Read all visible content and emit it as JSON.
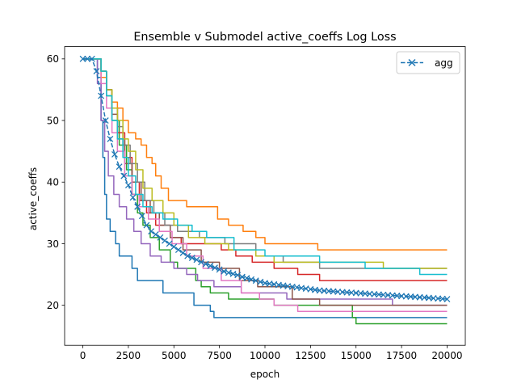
{
  "chart_data": {
    "type": "line",
    "title": "Ensemble v Submodel active_coeffs Log Loss",
    "xlabel": "epoch",
    "ylabel": "active_coeffs",
    "xlim": [
      -1000,
      21000
    ],
    "ylim": [
      13.5,
      62.0
    ],
    "xticks": [
      0,
      2500,
      5000,
      7500,
      10000,
      12500,
      15000,
      17500,
      20000
    ],
    "xtick_labels": [
      "0",
      "2500",
      "5000",
      "7500",
      "10000",
      "12500",
      "15000",
      "17500",
      "20000"
    ],
    "yticks": [
      20,
      30,
      40,
      50,
      60
    ],
    "ytick_labels": [
      "20",
      "30",
      "40",
      "50",
      "60"
    ],
    "grid": false,
    "legend": {
      "position": "top-right",
      "entries": [
        "agg"
      ]
    },
    "colors": [
      "#1f77b4",
      "#ff7f0e",
      "#2ca02c",
      "#d62728",
      "#9467bd",
      "#8c564b",
      "#e377c2",
      "#7f7f7f",
      "#bcbd22",
      "#17becf"
    ],
    "series": [
      {
        "color": "#1f77b4",
        "points": [
          [
            0,
            60
          ],
          [
            600,
            60
          ],
          [
            800,
            57
          ],
          [
            1000,
            50
          ],
          [
            1100,
            44
          ],
          [
            1200,
            38
          ],
          [
            1300,
            34
          ],
          [
            1500,
            32
          ],
          [
            1800,
            30
          ],
          [
            2000,
            28
          ],
          [
            2600,
            28
          ],
          [
            2700,
            26
          ],
          [
            3000,
            24
          ],
          [
            4200,
            24
          ],
          [
            4400,
            22
          ],
          [
            6000,
            22
          ],
          [
            6100,
            20
          ],
          [
            6800,
            20
          ],
          [
            7000,
            19
          ],
          [
            7200,
            18
          ],
          [
            20000,
            18
          ]
        ]
      },
      {
        "color": "#ff7f0e",
        "points": [
          [
            0,
            60
          ],
          [
            800,
            60
          ],
          [
            1000,
            57
          ],
          [
            1300,
            55
          ],
          [
            1600,
            53
          ],
          [
            1900,
            52
          ],
          [
            2200,
            50
          ],
          [
            2500,
            48
          ],
          [
            2900,
            47
          ],
          [
            3200,
            46
          ],
          [
            3500,
            44
          ],
          [
            3800,
            43
          ],
          [
            4000,
            41
          ],
          [
            4300,
            39
          ],
          [
            4700,
            37
          ],
          [
            5200,
            37
          ],
          [
            5700,
            36
          ],
          [
            7000,
            36
          ],
          [
            7400,
            34
          ],
          [
            8000,
            33
          ],
          [
            8800,
            32
          ],
          [
            9500,
            31
          ],
          [
            10000,
            30
          ],
          [
            12500,
            30
          ],
          [
            12900,
            29
          ],
          [
            20000,
            29
          ]
        ]
      },
      {
        "color": "#2ca02c",
        "points": [
          [
            0,
            60
          ],
          [
            800,
            60
          ],
          [
            1000,
            58
          ],
          [
            1300,
            54
          ],
          [
            1600,
            50
          ],
          [
            2000,
            46
          ],
          [
            2400,
            42
          ],
          [
            2700,
            38
          ],
          [
            3000,
            35
          ],
          [
            3300,
            33
          ],
          [
            3700,
            31
          ],
          [
            4200,
            29
          ],
          [
            4800,
            27
          ],
          [
            5200,
            26
          ],
          [
            6200,
            24
          ],
          [
            6500,
            23
          ],
          [
            7000,
            22
          ],
          [
            8000,
            21
          ],
          [
            10000,
            21
          ],
          [
            10500,
            20
          ],
          [
            14500,
            20
          ],
          [
            14800,
            18
          ],
          [
            15000,
            17
          ],
          [
            20000,
            17
          ]
        ]
      },
      {
        "color": "#d62728",
        "points": [
          [
            0,
            60
          ],
          [
            800,
            60
          ],
          [
            1000,
            58
          ],
          [
            1300,
            55
          ],
          [
            1600,
            52
          ],
          [
            1900,
            48
          ],
          [
            2300,
            44
          ],
          [
            2700,
            40
          ],
          [
            3100,
            37
          ],
          [
            3500,
            35
          ],
          [
            4000,
            33
          ],
          [
            4800,
            31
          ],
          [
            5400,
            30
          ],
          [
            7000,
            30
          ],
          [
            7600,
            29
          ],
          [
            8400,
            28
          ],
          [
            9300,
            27
          ],
          [
            10500,
            26
          ],
          [
            11800,
            25
          ],
          [
            12600,
            25
          ],
          [
            13000,
            24
          ],
          [
            20000,
            24
          ]
        ]
      },
      {
        "color": "#9467bd",
        "points": [
          [
            0,
            60
          ],
          [
            600,
            60
          ],
          [
            800,
            56
          ],
          [
            1000,
            50
          ],
          [
            1200,
            45
          ],
          [
            1400,
            41
          ],
          [
            1700,
            38
          ],
          [
            2000,
            36
          ],
          [
            2400,
            34
          ],
          [
            2800,
            32
          ],
          [
            3200,
            30
          ],
          [
            3700,
            28
          ],
          [
            4300,
            27
          ],
          [
            5000,
            26
          ],
          [
            5700,
            25
          ],
          [
            6300,
            24
          ],
          [
            7200,
            23
          ],
          [
            8700,
            22
          ],
          [
            10500,
            22
          ],
          [
            11200,
            21
          ],
          [
            16500,
            21
          ],
          [
            17000,
            20
          ],
          [
            20000,
            20
          ]
        ]
      },
      {
        "color": "#8c564b",
        "points": [
          [
            0,
            60
          ],
          [
            800,
            60
          ],
          [
            1000,
            58
          ],
          [
            1300,
            55
          ],
          [
            1600,
            51
          ],
          [
            1900,
            47
          ],
          [
            2300,
            43
          ],
          [
            2700,
            40
          ],
          [
            3200,
            37
          ],
          [
            3700,
            35
          ],
          [
            4200,
            33
          ],
          [
            4800,
            31
          ],
          [
            5500,
            29
          ],
          [
            6500,
            27
          ],
          [
            7500,
            26
          ],
          [
            8600,
            24
          ],
          [
            9600,
            23
          ],
          [
            10500,
            23
          ],
          [
            11500,
            21
          ],
          [
            12500,
            21
          ],
          [
            13000,
            20
          ],
          [
            20000,
            20
          ]
        ]
      },
      {
        "color": "#e377c2",
        "points": [
          [
            0,
            60
          ],
          [
            800,
            60
          ],
          [
            1000,
            56
          ],
          [
            1300,
            52
          ],
          [
            1600,
            48
          ],
          [
            1900,
            45
          ],
          [
            2300,
            41
          ],
          [
            2700,
            38
          ],
          [
            3100,
            36
          ],
          [
            3600,
            34
          ],
          [
            4200,
            32
          ],
          [
            4900,
            30
          ],
          [
            5700,
            28
          ],
          [
            6600,
            26
          ],
          [
            7600,
            24
          ],
          [
            8700,
            22
          ],
          [
            9700,
            21
          ],
          [
            10500,
            20
          ],
          [
            11800,
            19
          ],
          [
            20000,
            19
          ]
        ]
      },
      {
        "color": "#7f7f7f",
        "points": [
          [
            0,
            60
          ],
          [
            800,
            60
          ],
          [
            1000,
            58
          ],
          [
            1300,
            55
          ],
          [
            1600,
            52
          ],
          [
            1900,
            49
          ],
          [
            2200,
            46
          ],
          [
            2600,
            43
          ],
          [
            3000,
            40
          ],
          [
            3400,
            37
          ],
          [
            3900,
            35
          ],
          [
            4500,
            33
          ],
          [
            5200,
            32
          ],
          [
            6400,
            31
          ],
          [
            7800,
            30
          ],
          [
            9000,
            30
          ],
          [
            9500,
            28
          ],
          [
            11000,
            27
          ],
          [
            12500,
            27
          ],
          [
            13000,
            26
          ],
          [
            20000,
            26
          ]
        ]
      },
      {
        "color": "#bcbd22",
        "points": [
          [
            0,
            60
          ],
          [
            800,
            60
          ],
          [
            1000,
            58
          ],
          [
            1300,
            55
          ],
          [
            1600,
            52
          ],
          [
            1900,
            50
          ],
          [
            2200,
            47
          ],
          [
            2500,
            45
          ],
          [
            2900,
            42
          ],
          [
            3300,
            39
          ],
          [
            3800,
            37
          ],
          [
            4400,
            35
          ],
          [
            5000,
            33
          ],
          [
            5800,
            31
          ],
          [
            6700,
            30
          ],
          [
            7500,
            30
          ],
          [
            8000,
            29
          ],
          [
            9500,
            28
          ],
          [
            10500,
            27
          ],
          [
            12000,
            27
          ],
          [
            16000,
            27
          ],
          [
            16500,
            26
          ],
          [
            20000,
            26
          ]
        ]
      },
      {
        "color": "#17becf",
        "points": [
          [
            0,
            60
          ],
          [
            800,
            60
          ],
          [
            1000,
            58
          ],
          [
            1300,
            54
          ],
          [
            1600,
            50
          ],
          [
            1900,
            47
          ],
          [
            2200,
            44
          ],
          [
            2500,
            41
          ],
          [
            2900,
            38
          ],
          [
            3300,
            36
          ],
          [
            3800,
            35
          ],
          [
            4400,
            34
          ],
          [
            5200,
            33
          ],
          [
            6000,
            32
          ],
          [
            6800,
            31
          ],
          [
            7500,
            31
          ],
          [
            8300,
            29
          ],
          [
            10000,
            28
          ],
          [
            12000,
            28
          ],
          [
            13000,
            27
          ],
          [
            15000,
            27
          ],
          [
            15500,
            26
          ],
          [
            18000,
            26
          ],
          [
            18500,
            25
          ],
          [
            20000,
            25
          ]
        ]
      }
    ],
    "agg": {
      "name": "agg",
      "color": "#1f77b4",
      "marker": "x",
      "x": [
        0,
        250,
        500,
        750,
        1000,
        1250,
        1500,
        1750,
        2000,
        2250,
        2500,
        2750,
        3000,
        3250,
        3500,
        3750,
        4000,
        4250,
        4500,
        4750,
        5000,
        5250,
        5500,
        5750,
        6000,
        6250,
        6500,
        6750,
        7000,
        7250,
        7500,
        7750,
        8000,
        8250,
        8500,
        8750,
        9000,
        9250,
        9500,
        9750,
        10000,
        10250,
        10500,
        10750,
        11000,
        11250,
        11500,
        11750,
        12000,
        12250,
        12500,
        12750,
        13000,
        13250,
        13500,
        13750,
        14000,
        14250,
        14500,
        14750,
        15000,
        15250,
        15500,
        15750,
        16000,
        16250,
        16500,
        16750,
        17000,
        17250,
        17500,
        17750,
        18000,
        18250,
        18500,
        18750,
        19000,
        19250,
        19500,
        19750,
        20000
      ],
      "y": [
        60,
        60,
        60,
        58,
        54,
        50,
        47,
        44.5,
        42.5,
        41,
        39.5,
        37.5,
        36,
        34.5,
        33,
        32,
        31.5,
        31,
        30.5,
        30,
        29.5,
        29,
        28.5,
        28,
        27.7,
        27.4,
        27,
        26.7,
        26.4,
        26.1,
        25.8,
        25.5,
        25.3,
        25.1,
        24.9,
        24.6,
        24.4,
        24.2,
        24,
        23.8,
        23.6,
        23.5,
        23.4,
        23.3,
        23.2,
        23.1,
        23,
        22.9,
        22.8,
        22.7,
        22.6,
        22.5,
        22.4,
        22.35,
        22.3,
        22.25,
        22.2,
        22.15,
        22.1,
        22.05,
        22,
        21.95,
        21.9,
        21.85,
        21.8,
        21.75,
        21.7,
        21.65,
        21.6,
        21.55,
        21.5,
        21.45,
        21.4,
        21.35,
        21.3,
        21.25,
        21.2,
        21.15,
        21.1,
        21.05,
        21
      ]
    }
  }
}
